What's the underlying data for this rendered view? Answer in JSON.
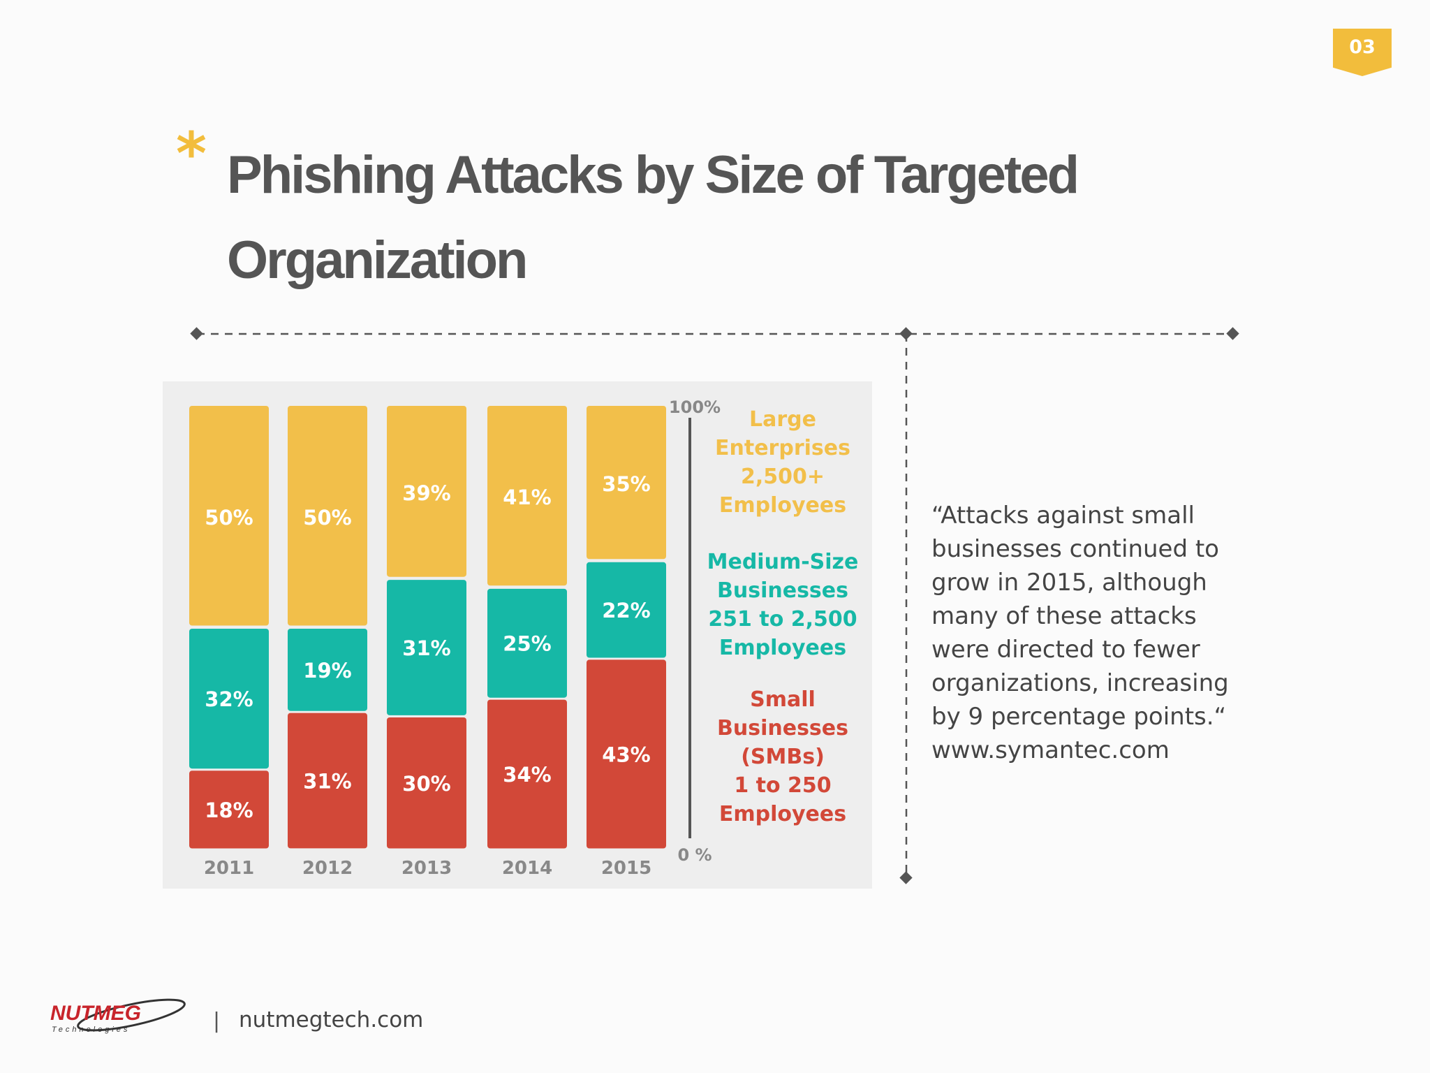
{
  "page_number": "03",
  "title": "Phishing Attacks by Size of Targeted Organization",
  "asterisk": "*",
  "quote_lines": [
    "“Attacks against small",
    "businesses continued to",
    "grow in 2015, although",
    "many of these attacks",
    "were directed to fewer",
    "organizations, increasing",
    "by 9 percentage points.“",
    "www.symantec.com"
  ],
  "footer": {
    "logo_text": "NUTMEG",
    "logo_subtext": "Technologies",
    "separator": "|",
    "url": "nutmegtech.com"
  },
  "colors": {
    "large": "#f2bf4a",
    "medium": "#16b8a6",
    "small": "#d24838",
    "accent": "#f2bd3c",
    "title": "#555555"
  },
  "chart_data": {
    "type": "bar",
    "stacked": true,
    "categories": [
      "2011",
      "2012",
      "2013",
      "2014",
      "2015"
    ],
    "series": [
      {
        "name": "Small Businesses (SMBs) 1 to 250 Employees",
        "label_lines": [
          "Small",
          "Businesses",
          "(SMBs)",
          "1 to 250",
          "Employees"
        ],
        "color": "#d24838",
        "values": [
          18,
          31,
          30,
          34,
          43
        ]
      },
      {
        "name": "Medium-Size Businesses 251 to 2,500 Employees",
        "label_lines": [
          "Medium-Size",
          "Businesses",
          "251 to 2,500",
          "Employees"
        ],
        "color": "#16b8a6",
        "values": [
          32,
          19,
          31,
          25,
          22
        ]
      },
      {
        "name": "Large Enterprises 2,500+ Employees",
        "label_lines": [
          "Large",
          "Enterprises",
          "2,500+",
          "Employees"
        ],
        "color": "#f2bf4a",
        "values": [
          50,
          50,
          39,
          41,
          35
        ]
      }
    ],
    "axis_top_label": "100%",
    "axis_bottom_label": "0 %",
    "ylim": [
      0,
      100
    ],
    "legend_placement": "right",
    "grid": false
  }
}
